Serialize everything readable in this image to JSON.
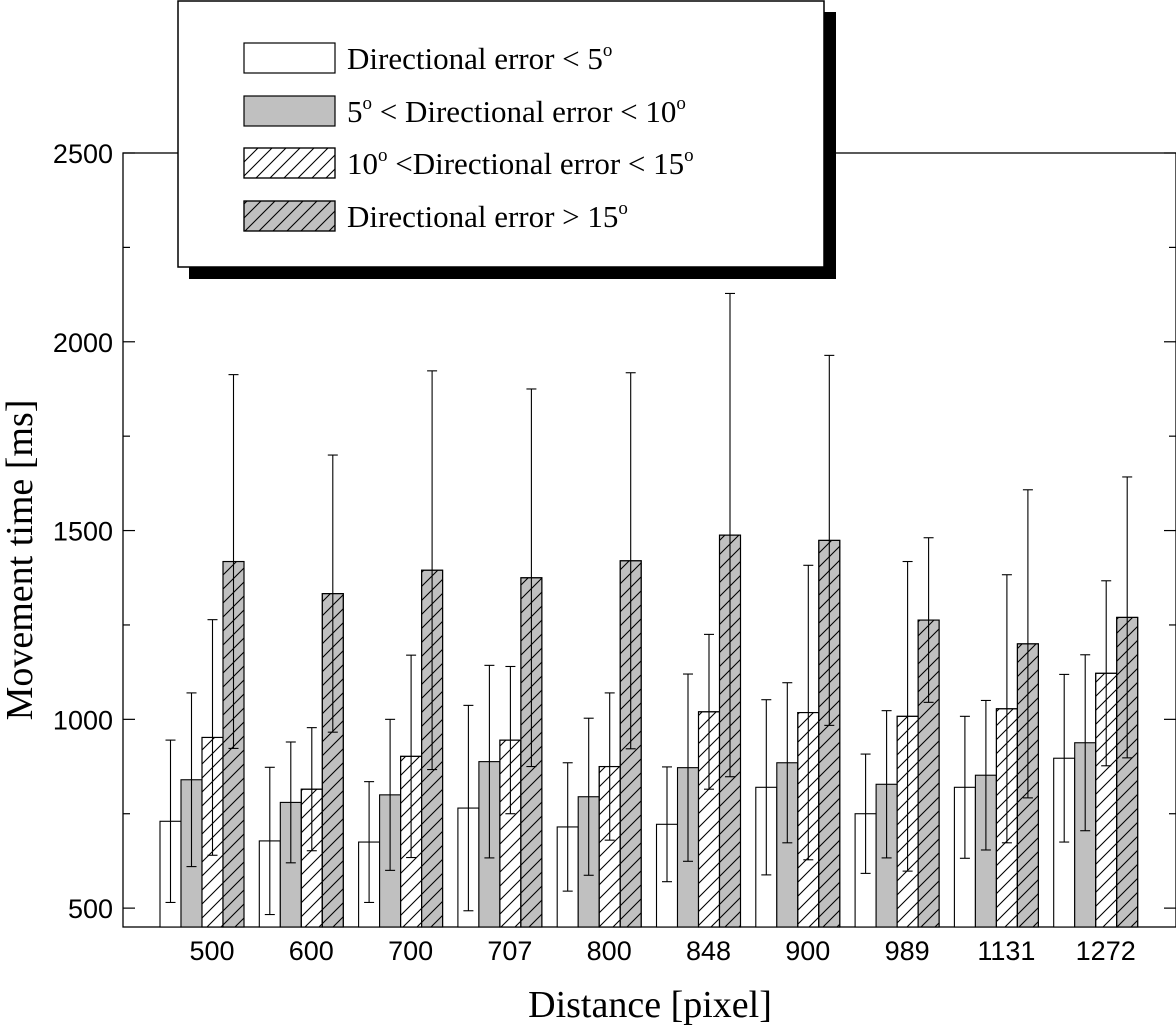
{
  "chart_data": {
    "type": "bar",
    "xlabel": "Distance [pixel]",
    "ylabel": "Movement time [ms]",
    "ylim": [
      450,
      2500
    ],
    "yticks": [
      "500",
      "1000",
      "1500",
      "2000",
      "2500"
    ],
    "categories": [
      "500",
      "600",
      "700",
      "707",
      "800",
      "848",
      "900",
      "989",
      "1131",
      "1272"
    ],
    "error_bars": true,
    "legend": {
      "placement": "top-left",
      "entries": [
        {
          "parts": [
            [
              "Directional error < 5",
              false
            ],
            [
              "o",
              true
            ]
          ]
        },
        {
          "parts": [
            [
              "5",
              false
            ],
            [
              "o",
              true
            ],
            [
              " < Directional error < 10",
              false
            ],
            [
              "o",
              true
            ]
          ]
        },
        {
          "parts": [
            [
              "10",
              false
            ],
            [
              "o",
              true
            ],
            [
              " <Directional error < 15",
              false
            ],
            [
              "o",
              true
            ]
          ]
        },
        {
          "parts": [
            [
              "Directional error > 15",
              false
            ],
            [
              "o",
              true
            ]
          ]
        }
      ]
    },
    "series": [
      {
        "fill": "#ffffff",
        "hatch": false,
        "values": [
          730,
          678,
          675,
          765,
          715,
          722,
          820,
          750,
          820,
          897
        ],
        "errors": [
          215,
          195,
          160,
          272,
          170,
          152,
          232,
          158,
          188,
          222
        ]
      },
      {
        "fill": "#c0c0c0",
        "hatch": false,
        "values": [
          840,
          780,
          800,
          888,
          795,
          872,
          885,
          828,
          852,
          938
        ],
        "errors": [
          230,
          160,
          200,
          255,
          208,
          248,
          212,
          195,
          198,
          233
        ]
      },
      {
        "fill": "#ffffff",
        "hatch": true,
        "values": [
          952,
          815,
          902,
          945,
          875,
          1020,
          1018,
          1008,
          1028,
          1122
        ],
        "errors": [
          312,
          163,
          268,
          195,
          195,
          205,
          390,
          410,
          355,
          245
        ]
      },
      {
        "fill": "#c0c0c0",
        "hatch": true,
        "values": [
          1418,
          1333,
          1395,
          1375,
          1420,
          1488,
          1474,
          1263,
          1200,
          1270
        ],
        "errors": [
          495,
          367,
          528,
          500,
          498,
          640,
          490,
          218,
          408,
          372
        ]
      }
    ]
  }
}
